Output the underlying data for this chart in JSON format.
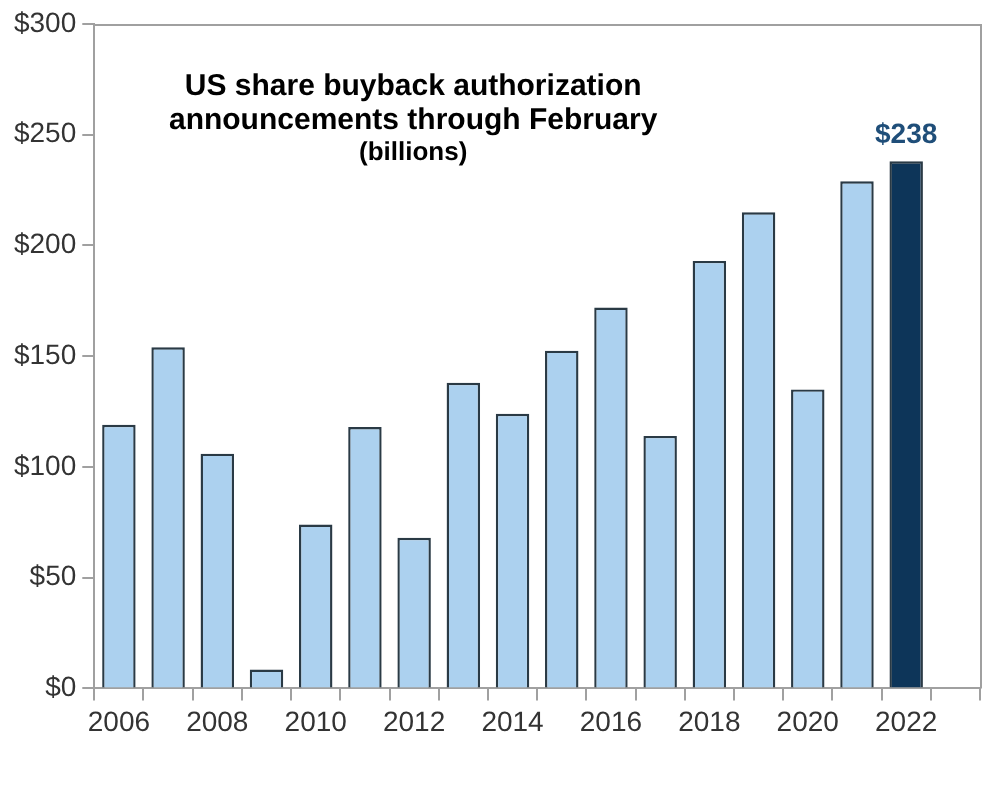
{
  "chart_data": {
    "type": "bar",
    "title": "US share buyback authorization\nannouncements through February",
    "subtitle": "(billions)",
    "categories": [
      "2006",
      null,
      "2008",
      null,
      "2010",
      null,
      "2012",
      null,
      "2014",
      null,
      "2016",
      null,
      "2018",
      null,
      "2020",
      null,
      "2022",
      null
    ],
    "values": [
      119,
      154,
      106,
      8.5,
      74,
      118,
      68,
      138,
      124,
      152.5,
      172,
      114,
      193,
      215,
      135,
      229,
      238,
      null
    ],
    "colors": [
      "#acd1ef",
      "#acd1ef",
      "#acd1ef",
      "#acd1ef",
      "#acd1ef",
      "#acd1ef",
      "#acd1ef",
      "#acd1ef",
      "#acd1ef",
      "#acd1ef",
      "#acd1ef",
      "#acd1ef",
      "#acd1ef",
      "#acd1ef",
      "#acd1ef",
      "#acd1ef",
      "#0d3559",
      "#acd1ef"
    ],
    "value_labels": [
      null,
      null,
      null,
      null,
      null,
      null,
      null,
      null,
      null,
      null,
      null,
      null,
      null,
      null,
      null,
      null,
      "$238",
      null
    ],
    "ylim": [
      0,
      300
    ],
    "yticks": [
      {
        "value": 0,
        "label": "$0"
      },
      {
        "value": 50,
        "label": "$50"
      },
      {
        "value": 100,
        "label": "$100"
      },
      {
        "value": 150,
        "label": "$150"
      },
      {
        "value": 200,
        "label": "$200"
      },
      {
        "value": 250,
        "label": "$250"
      },
      {
        "value": 300,
        "label": "$300"
      }
    ],
    "grid": false,
    "legend": false
  }
}
